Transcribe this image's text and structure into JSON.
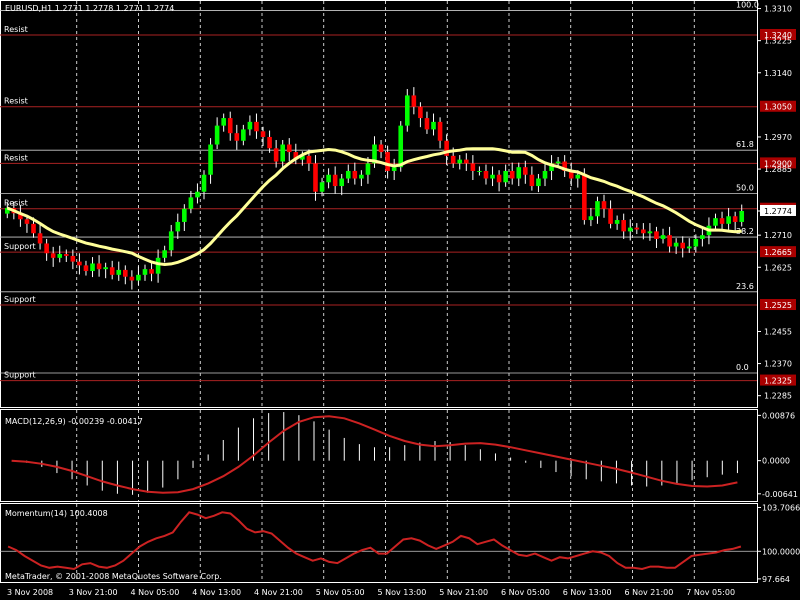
{
  "window": {
    "title": "EURUSD,H1  1.2771 1.2778 1.2771 1.2774",
    "copyright": "MetaTrader, © 2001-2008 MetaQuotes Software Corp."
  },
  "colors": {
    "background": "#000000",
    "bull": "#00ff00",
    "bear": "#ff0000",
    "ma": "#ffff99",
    "macd_line": "#cc2222",
    "macd_hist": "#ffffff",
    "momentum": "#cc2222",
    "level_line": "#aa2222",
    "fib_line": "#cccccc",
    "price_tag_bg": "#aa0000"
  },
  "x_labels": [
    "3 Nov 2008",
    "3 Nov 21:00",
    "4 Nov 05:00",
    "4 Nov 13:00",
    "4 Nov 21:00",
    "5 Nov 05:00",
    "5 Nov 13:00",
    "5 Nov 21:00",
    "6 Nov 05:00",
    "6 Nov 13:00",
    "6 Nov 21:00",
    "7 Nov 05:00"
  ],
  "chart_data": [
    {
      "type": "candlestick",
      "symbol": "EURUSD,H1",
      "ylim": [
        1.2255,
        1.333
      ],
      "price_ticks": [
        "1.3310",
        "1.3225",
        "1.3140",
        "1.2970",
        "1.2885",
        "1.2774",
        "1.2710",
        "1.2625",
        "1.2455",
        "1.2370",
        "1.2285"
      ],
      "close": [
        1.2782,
        1.2768,
        1.2752,
        1.274,
        1.2715,
        1.2688,
        1.2662,
        1.265,
        1.266,
        1.2655,
        1.264,
        1.263,
        1.2615,
        1.2635,
        1.262,
        1.2625,
        1.2605,
        1.2618,
        1.26,
        1.259,
        1.2605,
        1.262,
        1.2608,
        1.265,
        1.267,
        1.272,
        1.2745,
        1.278,
        1.281,
        1.2825,
        1.287,
        1.295,
        1.3,
        1.302,
        1.298,
        1.296,
        1.299,
        1.301,
        1.2985,
        1.297,
        1.294,
        1.2905,
        1.295,
        1.293,
        1.291,
        1.292,
        1.29,
        1.2825,
        1.285,
        1.287,
        1.284,
        1.286,
        1.288,
        1.286,
        1.287,
        1.29,
        1.295,
        1.293,
        1.288,
        1.289,
        1.3,
        1.308,
        1.305,
        1.302,
        1.299,
        1.301,
        1.296,
        1.292,
        1.29,
        1.291,
        1.29,
        1.288,
        1.288,
        1.286,
        1.287,
        1.285,
        1.288,
        1.286,
        1.289,
        1.287,
        1.284,
        1.286,
        1.288,
        1.29,
        1.2905,
        1.288,
        1.286,
        1.287,
        1.275,
        1.276,
        1.28,
        1.278,
        1.274,
        1.275,
        1.272,
        1.273,
        1.2725,
        1.2715,
        1.272,
        1.27,
        1.271,
        1.268,
        1.269,
        1.2675,
        1.268,
        1.27,
        1.271,
        1.2735,
        1.2755,
        1.274,
        1.276,
        1.2745,
        1.2774
      ],
      "ma_period_label": "",
      "levels": [
        {
          "name": "Resist",
          "price": "1.3240",
          "value": 1.324
        },
        {
          "name": "Resist",
          "price": "1.3050",
          "value": 1.305
        },
        {
          "name": "Resist",
          "price": "1.2900",
          "value": 1.29
        },
        {
          "name": "Resist",
          "price": "1.2780",
          "value": 1.278
        },
        {
          "name": "Support",
          "price": "1.2665",
          "value": 1.2665
        },
        {
          "name": "Support",
          "price": "1.2525",
          "value": 1.2525
        },
        {
          "name": "Support",
          "price": "1.2325",
          "value": 1.2325
        }
      ],
      "fib_levels": [
        {
          "label": "100.0",
          "value": 1.3305
        },
        {
          "label": "61.8",
          "value": 1.2935
        },
        {
          "label": "50.0",
          "value": 1.282
        },
        {
          "label": "38.2",
          "value": 1.2705
        },
        {
          "label": "23.6",
          "value": 1.256
        },
        {
          "label": "0.0",
          "value": 1.2345
        }
      ],
      "current_price": "1.2774"
    },
    {
      "type": "line+bar",
      "title": "MACD(12,26,9) -0.00239 -0.00417",
      "ylim": [
        -0.0078,
        0.0098
      ],
      "y_ticks": [
        "0.00876",
        "0.0000",
        "-0.00641"
      ],
      "signal": [
        0.0,
        -0.0002,
        -0.0006,
        -0.0012,
        -0.002,
        -0.003,
        -0.004,
        -0.0048,
        -0.0055,
        -0.006,
        -0.0062,
        -0.0061,
        -0.0055,
        -0.0044,
        -0.003,
        -0.0012,
        0.001,
        0.0035,
        0.0058,
        0.0075,
        0.0084,
        0.0086,
        0.0082,
        0.0072,
        0.006,
        0.0048,
        0.0038,
        0.0031,
        0.0028,
        0.003,
        0.0033,
        0.0034,
        0.0031,
        0.0026,
        0.002,
        0.0014,
        0.0008,
        0.0002,
        -0.0004,
        -0.001,
        -0.0016,
        -0.0023,
        -0.0031,
        -0.0039,
        -0.0045,
        -0.0049,
        -0.005,
        -0.0048,
        -0.0042
      ],
      "histogram": [
        0.0,
        -0.0004,
        -0.0012,
        -0.0024,
        -0.0036,
        -0.0048,
        -0.0058,
        -0.0064,
        -0.0066,
        -0.0062,
        -0.0052,
        -0.0036,
        -0.0014,
        0.0012,
        0.004,
        0.0064,
        0.0082,
        0.0092,
        0.0094,
        0.0088,
        0.0076,
        0.006,
        0.0044,
        0.0032,
        0.0026,
        0.0026,
        0.003,
        0.0035,
        0.0038,
        0.0036,
        0.003,
        0.0022,
        0.0014,
        0.0006,
        -0.0004,
        -0.0014,
        -0.0022,
        -0.003,
        -0.0036,
        -0.004,
        -0.0044,
        -0.0048,
        -0.005,
        -0.0048,
        -0.0044,
        -0.0038,
        -0.0032,
        -0.0027,
        -0.0024
      ]
    },
    {
      "type": "line",
      "title": "Momentum(14) 100.4008",
      "ylim": [
        97.4,
        104.0
      ],
      "y_ticks": [
        "103.7066",
        "100.0000",
        "97.664"
      ],
      "values": [
        100.4,
        100.1,
        99.6,
        99.2,
        98.8,
        98.6,
        98.7,
        98.6,
        98.5,
        98.9,
        99.0,
        98.7,
        98.6,
        98.8,
        99.2,
        99.8,
        100.4,
        100.8,
        101.1,
        101.3,
        101.6,
        102.5,
        103.3,
        103.1,
        102.8,
        103.0,
        103.3,
        103.2,
        102.6,
        101.9,
        101.6,
        101.7,
        101.5,
        100.9,
        100.3,
        99.8,
        99.5,
        99.2,
        99.4,
        99.1,
        99.0,
        99.4,
        99.8,
        100.1,
        100.3,
        99.8,
        99.8,
        100.4,
        101.0,
        101.1,
        100.9,
        100.5,
        100.2,
        100.5,
        100.8,
        101.3,
        101.1,
        100.6,
        100.8,
        101.0,
        100.5,
        100.1,
        99.7,
        99.6,
        99.8,
        99.5,
        99.2,
        99.5,
        99.4,
        99.6,
        99.8,
        100.0,
        99.9,
        99.6,
        99.0,
        98.6,
        98.6,
        98.5,
        98.7,
        98.7,
        98.6,
        98.6,
        99.1,
        99.6,
        99.7,
        99.8,
        99.9,
        100.1,
        100.2,
        100.4
      ]
    }
  ]
}
